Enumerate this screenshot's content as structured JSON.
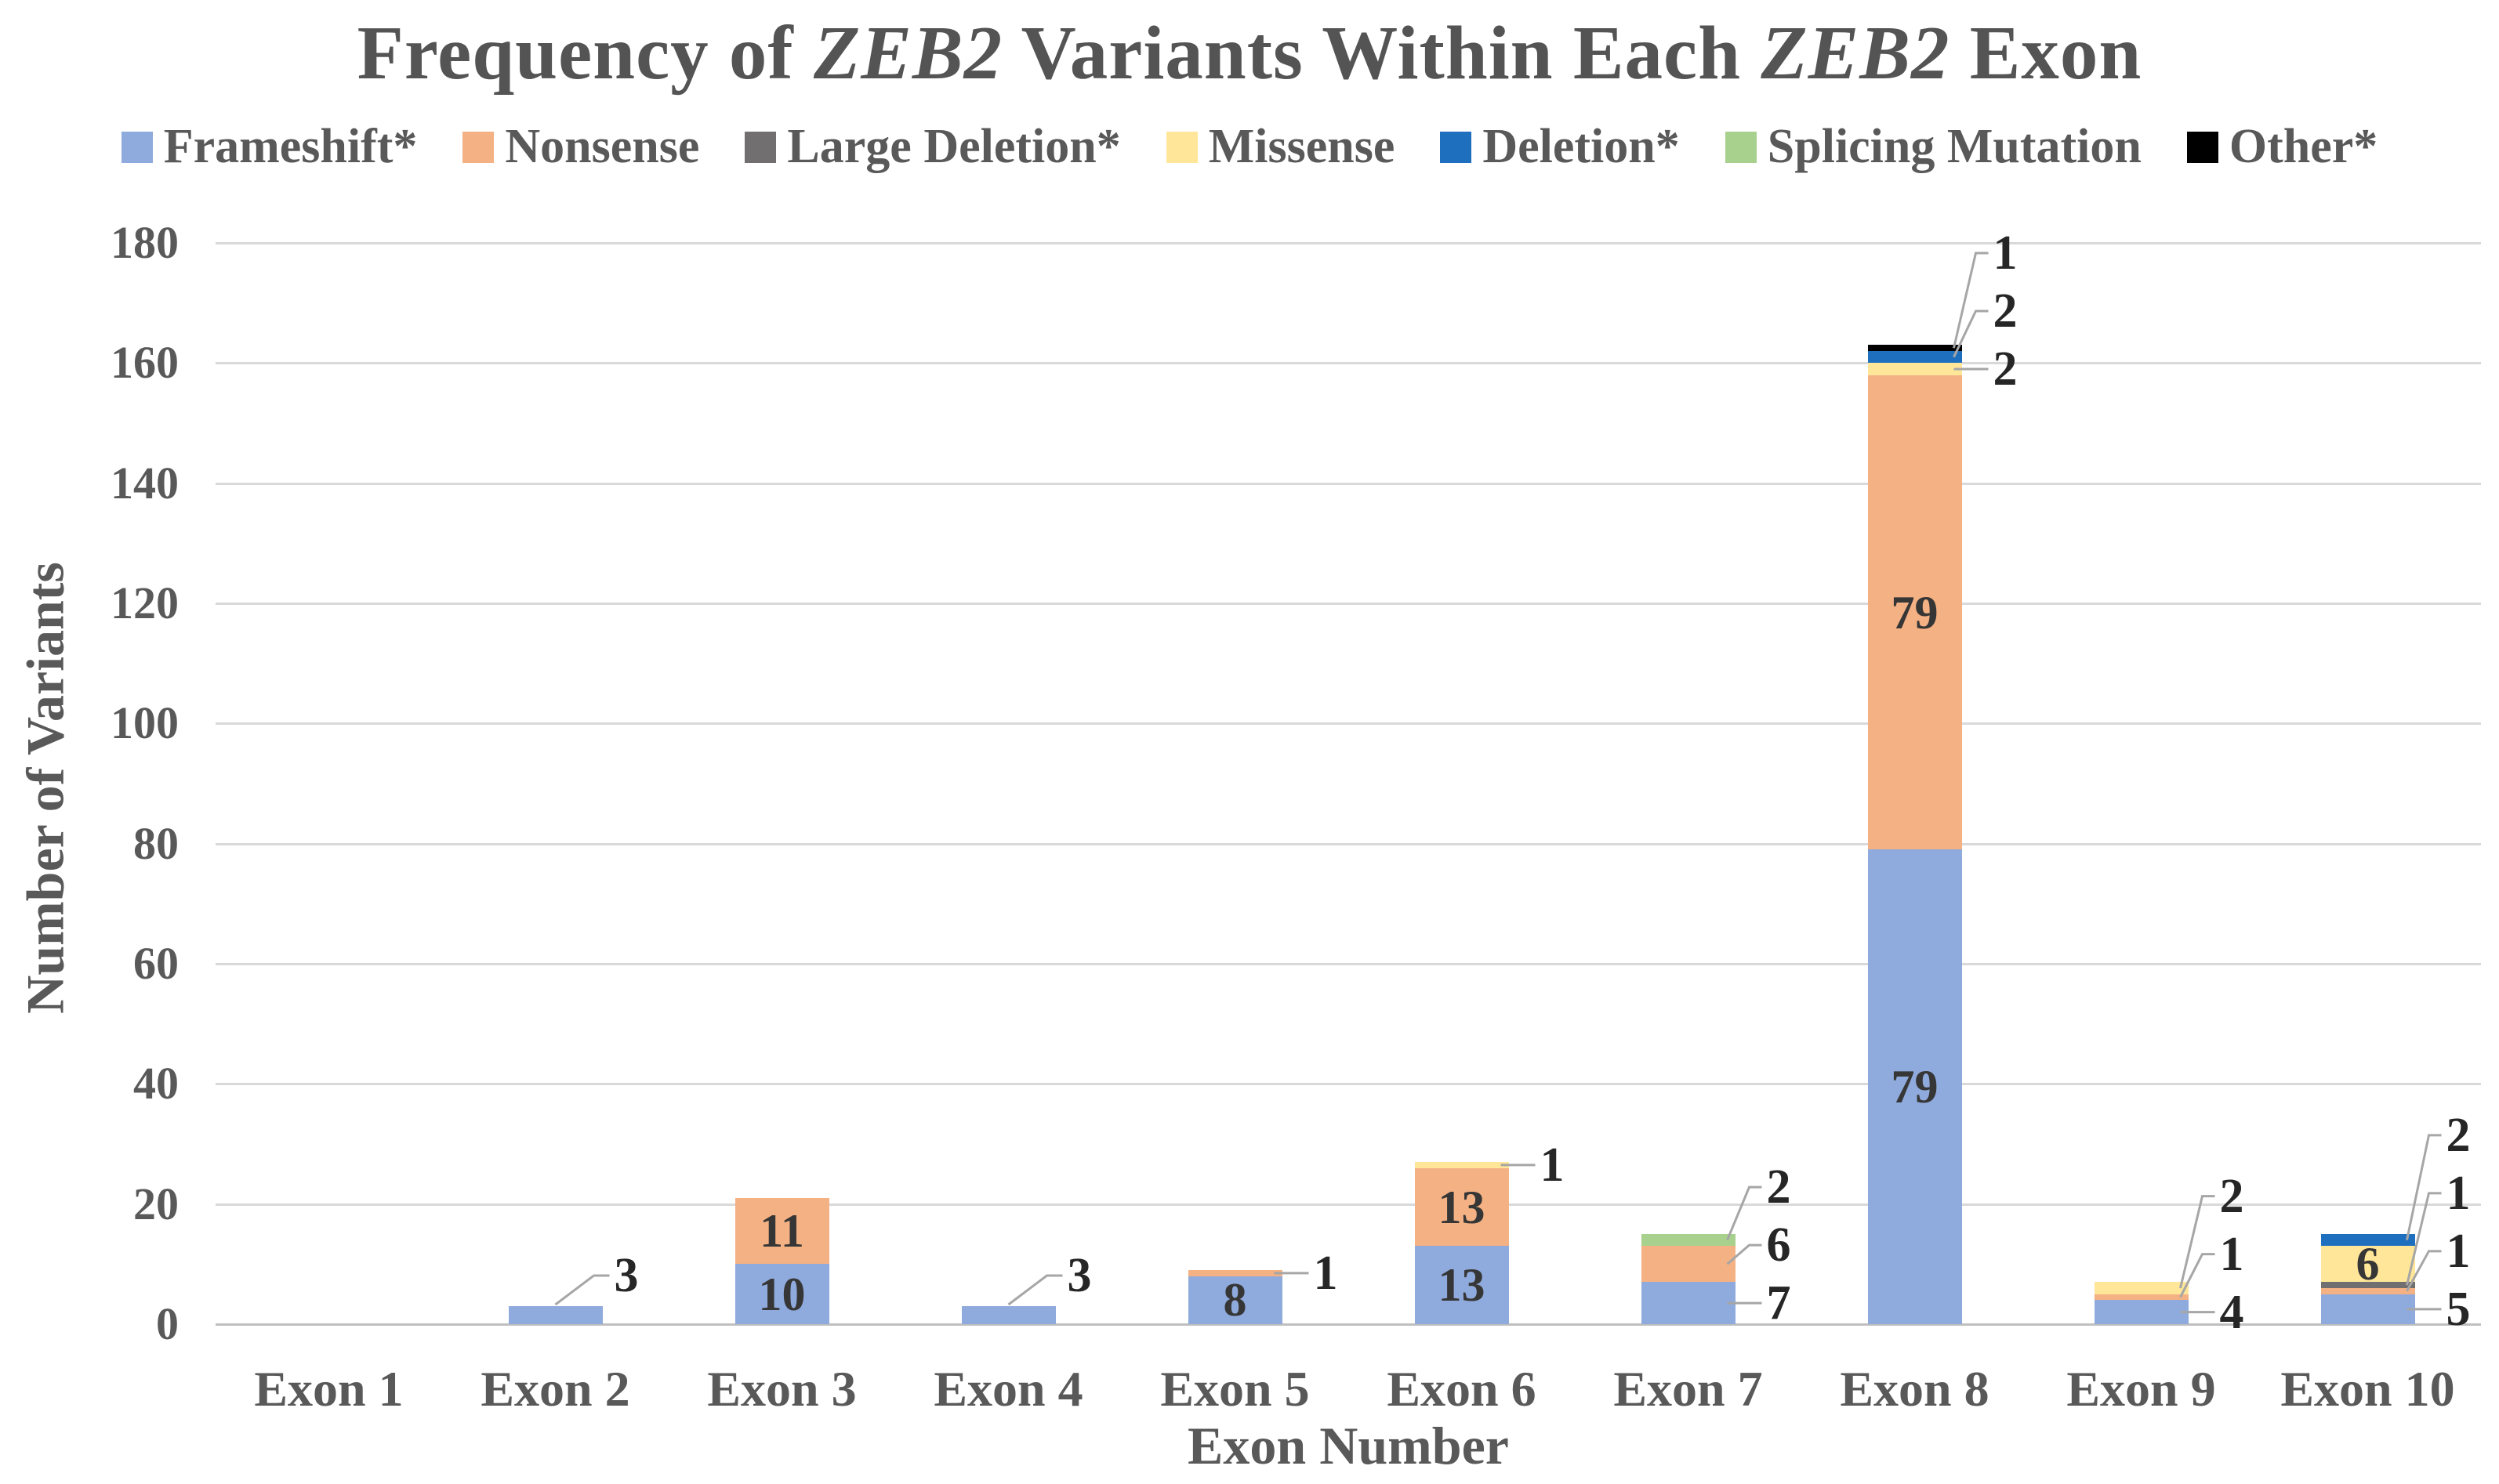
{
  "title": {
    "full_text": "Frequency of ZEB2 Variants Within Each ZEB2 Exon",
    "parts": [
      {
        "text": "Frequency of ",
        "italic": false
      },
      {
        "text": "ZEB2",
        "italic": true
      },
      {
        "text": " Variants Within Each ",
        "italic": false
      },
      {
        "text": "ZEB2",
        "italic": true
      },
      {
        "text": " Exon",
        "italic": false
      }
    ]
  },
  "colors": {
    "text": "#595959",
    "title": "#545454",
    "gridline": "#D9D9D9",
    "axis_line": "#BFBFBF",
    "leader_line": "#A6A6A6",
    "data_label": "#262626"
  },
  "chart_data": {
    "type": "bar",
    "stacked": true,
    "title": "Frequency of ZEB2 Variants Within Each ZEB2 Exon",
    "xlabel": "Exon Number",
    "ylabel": "Number of Variants",
    "ylim": [
      0,
      180
    ],
    "ytick_step": 20,
    "yticks": [
      0,
      20,
      40,
      60,
      80,
      100,
      120,
      140,
      160,
      180
    ],
    "grid": "horizontal",
    "legend_position": "top",
    "categories": [
      "Exon 1",
      "Exon 2",
      "Exon 3",
      "Exon 4",
      "Exon 5",
      "Exon 6",
      "Exon 7",
      "Exon 8",
      "Exon 9",
      "Exon 10"
    ],
    "series": [
      {
        "name": "Frameshift*",
        "color": "#8FAADC",
        "values": [
          0,
          3,
          10,
          3,
          8,
          13,
          7,
          79,
          4,
          5
        ]
      },
      {
        "name": "Nonsense",
        "color": "#F4B183",
        "values": [
          0,
          0,
          11,
          0,
          1,
          13,
          6,
          79,
          1,
          1
        ]
      },
      {
        "name": "Large Deletion*",
        "color": "#716F6F",
        "values": [
          0,
          0,
          0,
          0,
          0,
          0,
          0,
          0,
          0,
          1
        ]
      },
      {
        "name": "Missense",
        "color": "#FFE699",
        "values": [
          0,
          0,
          0,
          0,
          0,
          1,
          0,
          2,
          2,
          6
        ]
      },
      {
        "name": "Deletion*",
        "color": "#1F6FBF",
        "values": [
          0,
          0,
          0,
          0,
          0,
          0,
          0,
          2,
          0,
          2
        ]
      },
      {
        "name": "Splicing Mutation",
        "color": "#A9D18E",
        "values": [
          0,
          0,
          0,
          0,
          0,
          0,
          2,
          0,
          0,
          0
        ]
      },
      {
        "name": "Other*",
        "color": "#000000",
        "values": [
          0,
          0,
          0,
          0,
          0,
          0,
          0,
          1,
          0,
          0
        ]
      }
    ],
    "data_labels": {
      "inside": [
        {
          "category": "Exon 3",
          "series": "Frameshift*",
          "value": 10
        },
        {
          "category": "Exon 3",
          "series": "Nonsense",
          "value": 11
        },
        {
          "category": "Exon 5",
          "series": "Frameshift*",
          "value": 8
        },
        {
          "category": "Exon 6",
          "series": "Frameshift*",
          "value": 13
        },
        {
          "category": "Exon 6",
          "series": "Nonsense",
          "value": 13
        },
        {
          "category": "Exon 8",
          "series": "Frameshift*",
          "value": 79
        },
        {
          "category": "Exon 8",
          "series": "Nonsense",
          "value": 79
        },
        {
          "category": "Exon 10",
          "series": "Missense",
          "value": 6
        }
      ],
      "callout": [
        {
          "category": "Exon 2",
          "series": "Frameshift*",
          "value": 3
        },
        {
          "category": "Exon 4",
          "series": "Frameshift*",
          "value": 3
        },
        {
          "category": "Exon 5",
          "series": "Nonsense",
          "value": 1
        },
        {
          "category": "Exon 6",
          "series": "Missense",
          "value": 1
        },
        {
          "category": "Exon 7",
          "series": "Splicing Mutation",
          "value": 2
        },
        {
          "category": "Exon 7",
          "series": "Nonsense",
          "value": 6
        },
        {
          "category": "Exon 7",
          "series": "Frameshift*",
          "value": 7
        },
        {
          "category": "Exon 8",
          "series": "Other*",
          "value": 1
        },
        {
          "category": "Exon 8",
          "series": "Deletion*",
          "value": 2
        },
        {
          "category": "Exon 8",
          "series": "Missense",
          "value": 2
        },
        {
          "category": "Exon 9",
          "series": "Missense",
          "value": 2
        },
        {
          "category": "Exon 9",
          "series": "Nonsense",
          "value": 1
        },
        {
          "category": "Exon 9",
          "series": "Frameshift*",
          "value": 4
        },
        {
          "category": "Exon 10",
          "series": "Deletion*",
          "value": 2
        },
        {
          "category": "Exon 10",
          "series": "Large Deletion*",
          "value": 1
        },
        {
          "category": "Exon 10",
          "series": "Nonsense",
          "value": 1
        },
        {
          "category": "Exon 10",
          "series": "Frameshift*",
          "value": 5
        }
      ]
    }
  }
}
